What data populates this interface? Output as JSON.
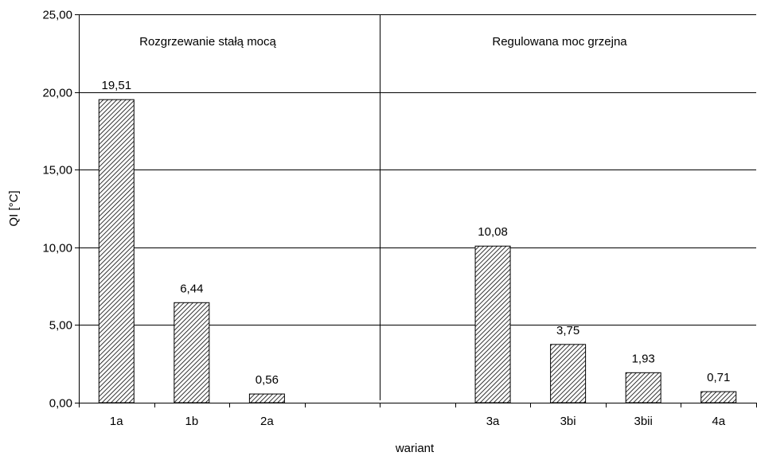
{
  "chart_data": {
    "type": "bar",
    "ylabel": "QI [°C]",
    "xlabel": "wariant",
    "ylim": [
      0,
      25
    ],
    "yticks": [
      0,
      5,
      10,
      15,
      20,
      25
    ],
    "ytick_labels": [
      "0,00",
      "5,00",
      "10,00",
      "15,00",
      "20,00",
      "25,00"
    ],
    "grid": true,
    "bar_pattern": "diagonal-hatch",
    "bar_color": "#000000",
    "categories": [
      "1a",
      "1b",
      "2a",
      "",
      "",
      "3a",
      "3bi",
      "3bii",
      "4a"
    ],
    "values": [
      19.51,
      6.44,
      0.56,
      null,
      null,
      10.08,
      3.75,
      1.93,
      0.71
    ],
    "value_labels": [
      "19,51",
      "6,44",
      "0,56",
      "",
      "",
      "10,08",
      "3,75",
      "1,93",
      "0,71"
    ],
    "sections": [
      {
        "title": "Rozgrzewanie stałą mocą"
      },
      {
        "title": "Regulowana moc grzejna"
      }
    ]
  }
}
